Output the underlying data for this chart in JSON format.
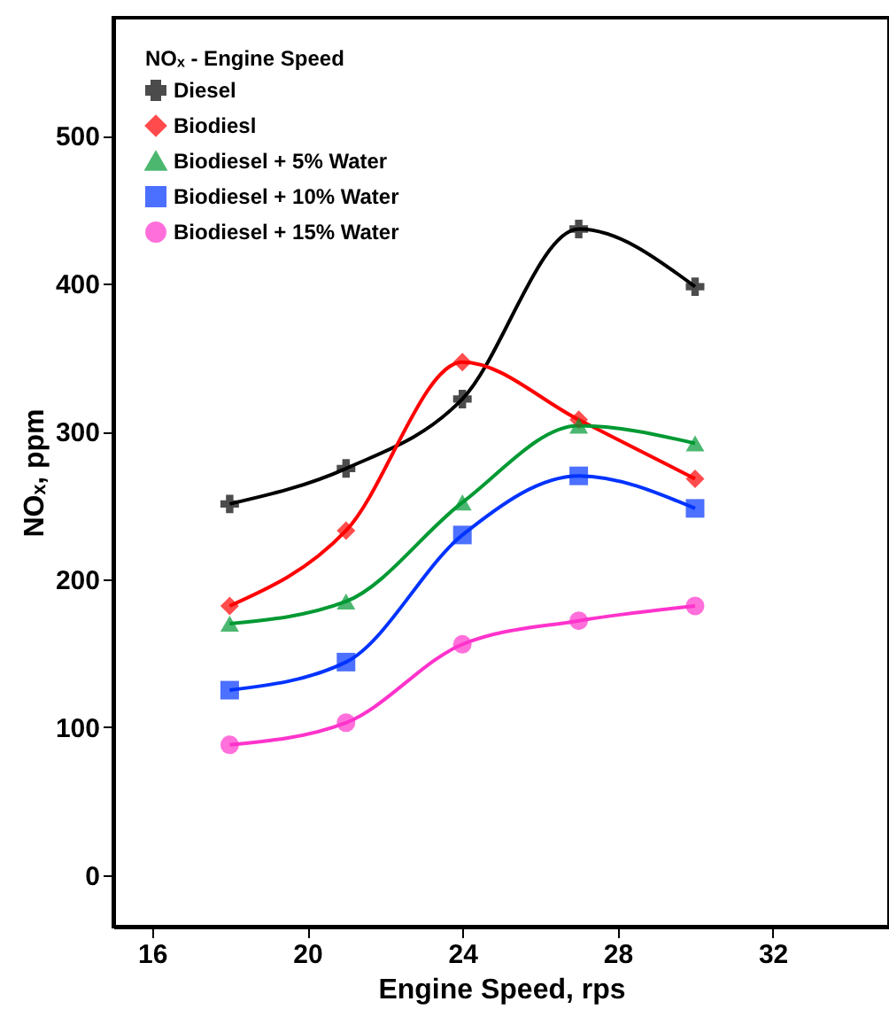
{
  "chart_data": {
    "type": "line",
    "xlabel": "Engine Speed, rps",
    "ylabel": "NOₓ, ppm",
    "legend_title": "NOₓ - Engine Speed",
    "legend": "top left",
    "grid": false,
    "line_style": "solid",
    "x": [
      18,
      21,
      24,
      27,
      30
    ],
    "xlim": [
      15,
      35
    ],
    "xticks": [
      16,
      20,
      24,
      28,
      32
    ],
    "ylim": [
      -35,
      580
    ],
    "yticks": [
      0,
      100,
      200,
      300,
      400,
      500
    ],
    "series": [
      {
        "name": "Diesel",
        "color": "#000000",
        "marker": "cross",
        "values": [
          251,
          275,
          322,
          437,
          398
        ]
      },
      {
        "name": "Biodiesl",
        "color": "#ff0000",
        "marker": "diamond",
        "values": [
          182,
          233,
          347,
          308,
          268
        ]
      },
      {
        "name": "Biodiesel + 5% Water",
        "color": "#009933",
        "marker": "triangle",
        "values": [
          170,
          185,
          252,
          304,
          292
        ]
      },
      {
        "name": "Biodiesel + 10% Water",
        "color": "#0033ff",
        "marker": "square",
        "values": [
          125,
          144,
          230,
          270,
          248
        ]
      },
      {
        "name": "Biodiesel  + 15% Water",
        "color": "#ff33cc",
        "marker": "circle",
        "values": [
          88,
          103,
          156,
          172,
          182
        ]
      }
    ]
  }
}
